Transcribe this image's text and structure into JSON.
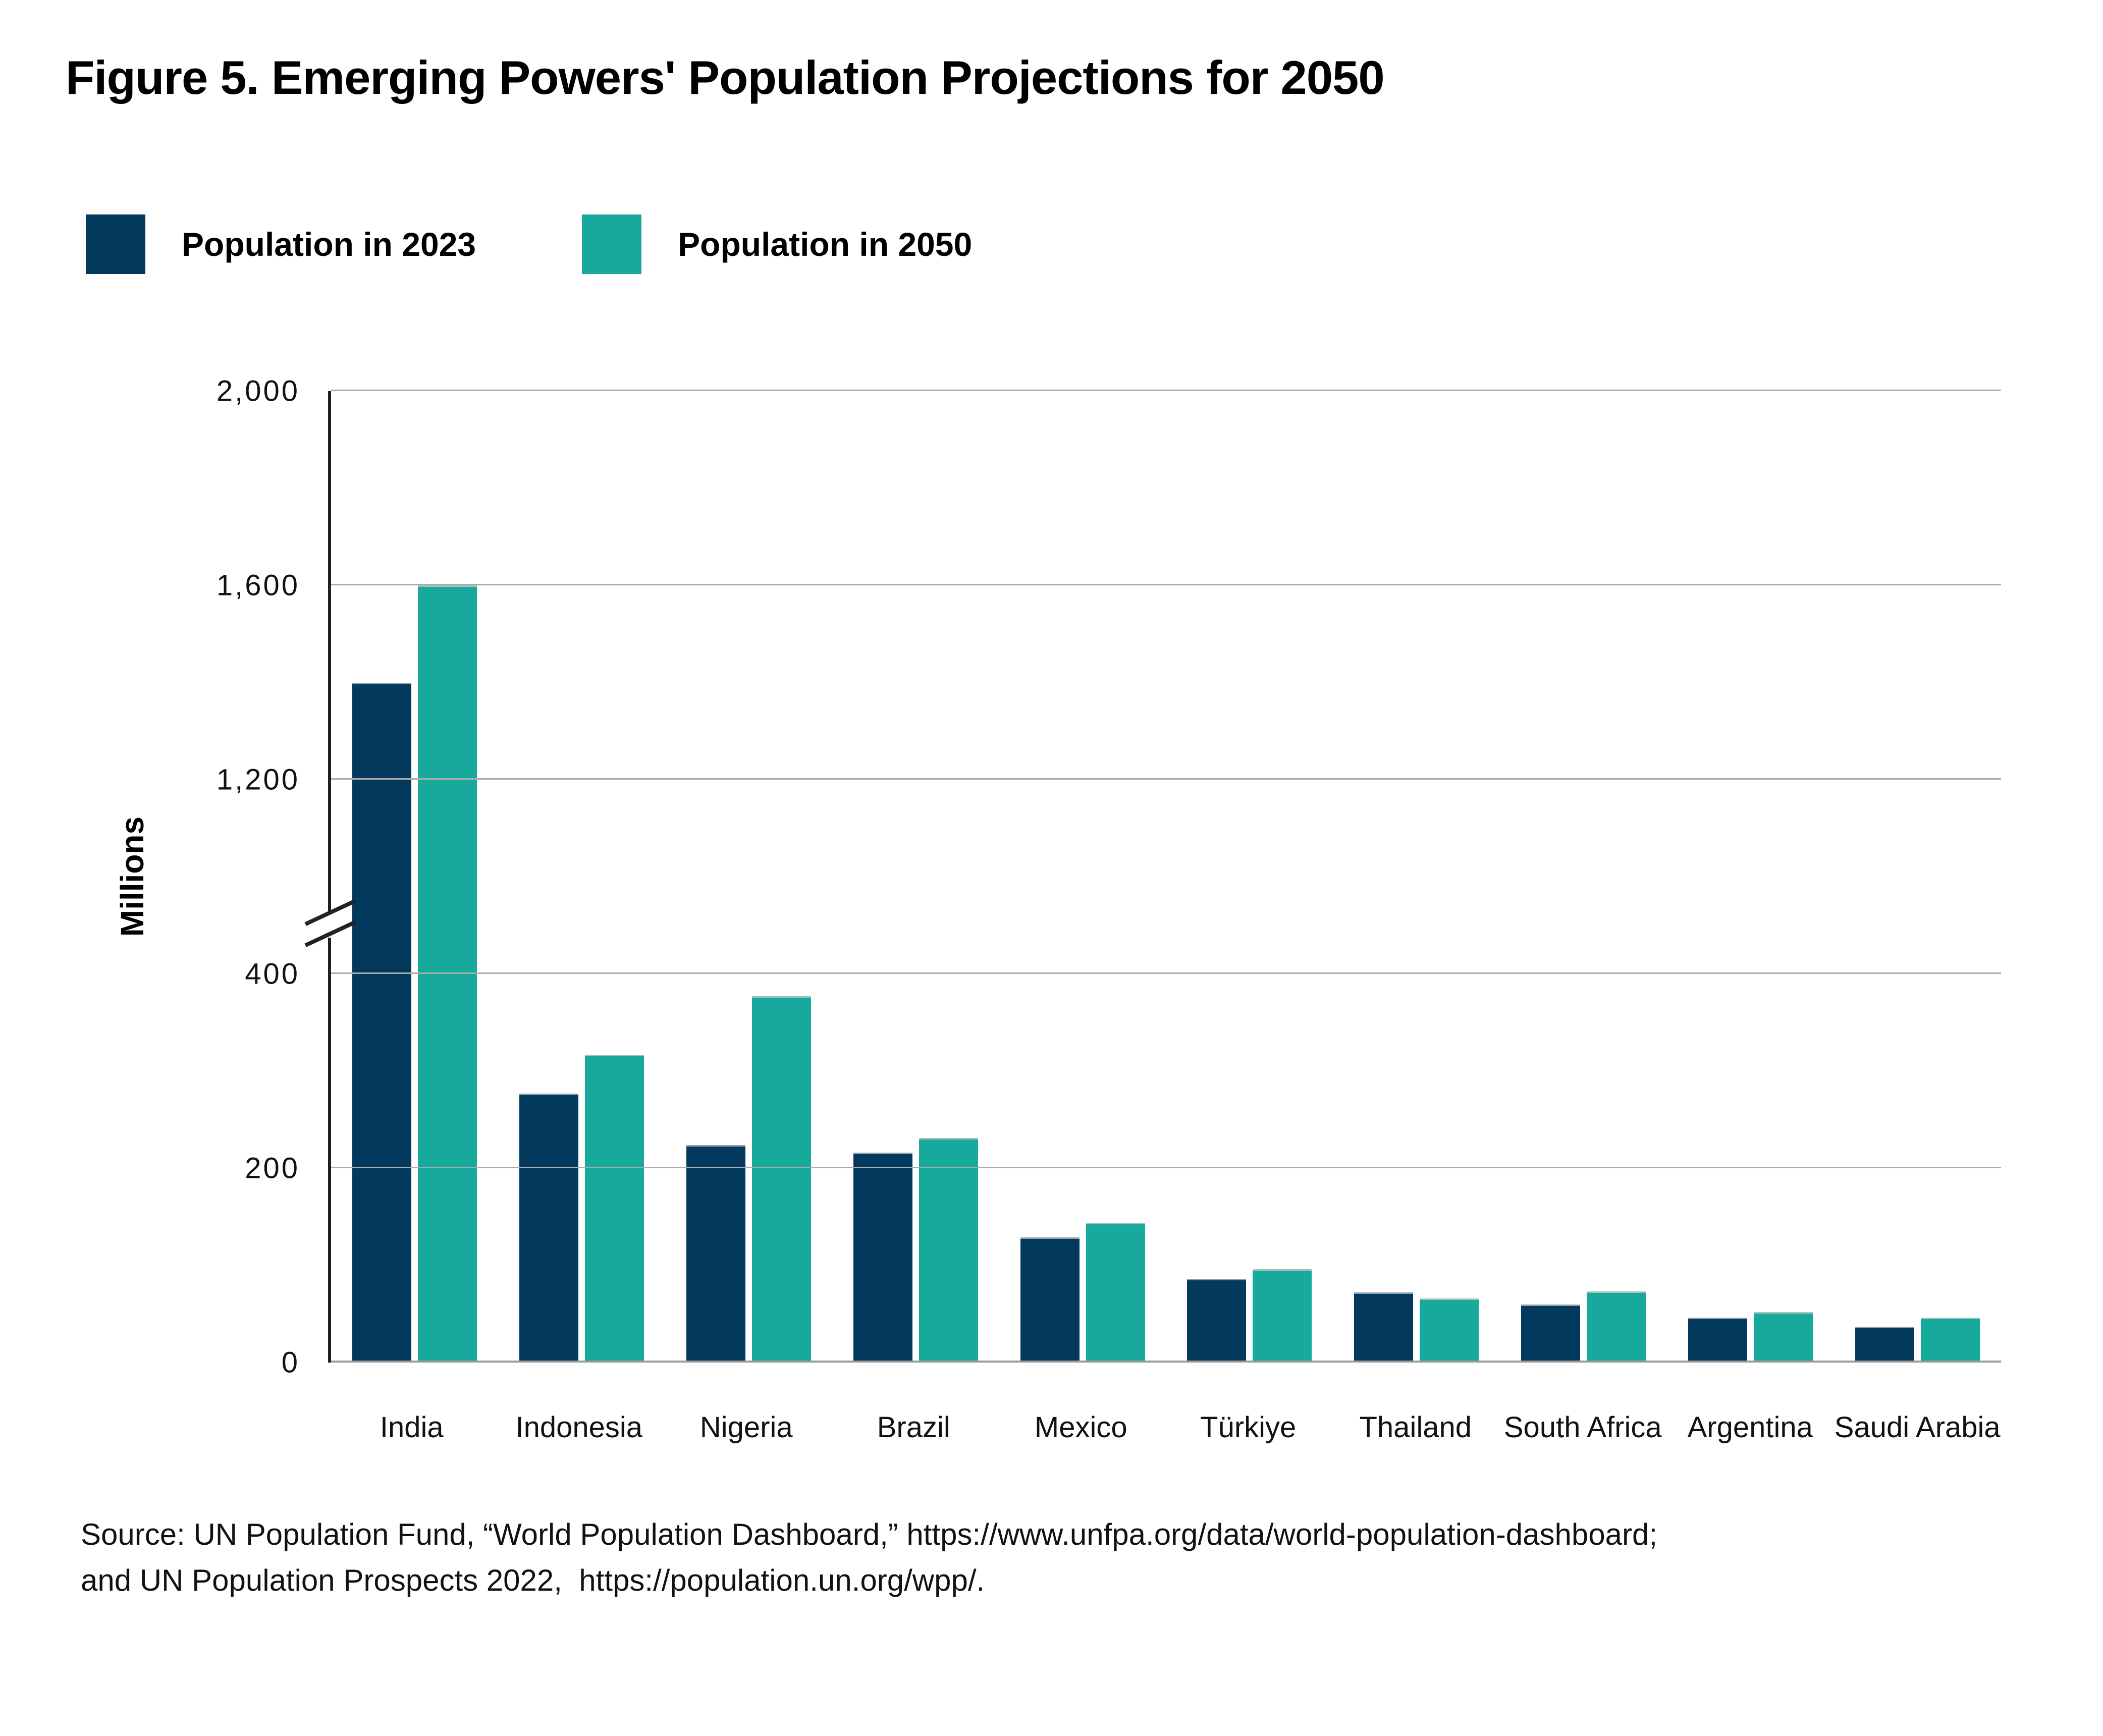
{
  "title": "Figure 5. Emerging Powers' Population Projections for 2050",
  "source": {
    "line1": "Source: UN Population Fund, “World Population Dashboard,” https://www.unfpa.org/data/world-population-dashboard;",
    "line2": "and UN Population Prospects 2022,  https://population.un.org/wpp/."
  },
  "colors": {
    "series_2023": "#04395e",
    "series_2050": "#16a99c",
    "gridline": "#ababab",
    "axis": "#1f1f1f",
    "text": "#000000",
    "background": "#ffffff"
  },
  "chart_data": {
    "type": "bar",
    "title": "Figure 5. Emerging Powers' Population Projections for 2050",
    "xlabel": "",
    "ylabel": "Millions",
    "grid": true,
    "legend_position": "top-left",
    "categories": [
      "India",
      "Indonesia",
      "Nigeria",
      "Brazil",
      "Mexico",
      "Türkiye",
      "Thailand",
      "South Africa",
      "Argentina",
      "Saudi Arabia"
    ],
    "series": [
      {
        "name": "Population in 2023",
        "color": "#04395e",
        "values": [
          1400,
          277,
          224,
          216,
          129,
          86,
          72,
          60,
          46,
          37
        ]
      },
      {
        "name": "Population in 2050",
        "color": "#16a99c",
        "values": [
          1600,
          317,
          377,
          231,
          144,
          96,
          66,
          73,
          52,
          46
        ]
      }
    ],
    "y_axis": {
      "broken": true,
      "break_between": [
        400,
        1200
      ],
      "lower_segment": {
        "range": [
          0,
          400
        ],
        "units_per_gridline": 200
      },
      "upper_segment": {
        "range": [
          1200,
          2000
        ],
        "units_per_gridline": 400
      },
      "ticks": [
        {
          "value": 0,
          "label": "0"
        },
        {
          "value": 200,
          "label": "200"
        },
        {
          "value": 400,
          "label": "400"
        },
        {
          "value": 1200,
          "label": "1,200"
        },
        {
          "value": 1600,
          "label": "1,600"
        },
        {
          "value": 2000,
          "label": "2,000"
        }
      ]
    }
  }
}
